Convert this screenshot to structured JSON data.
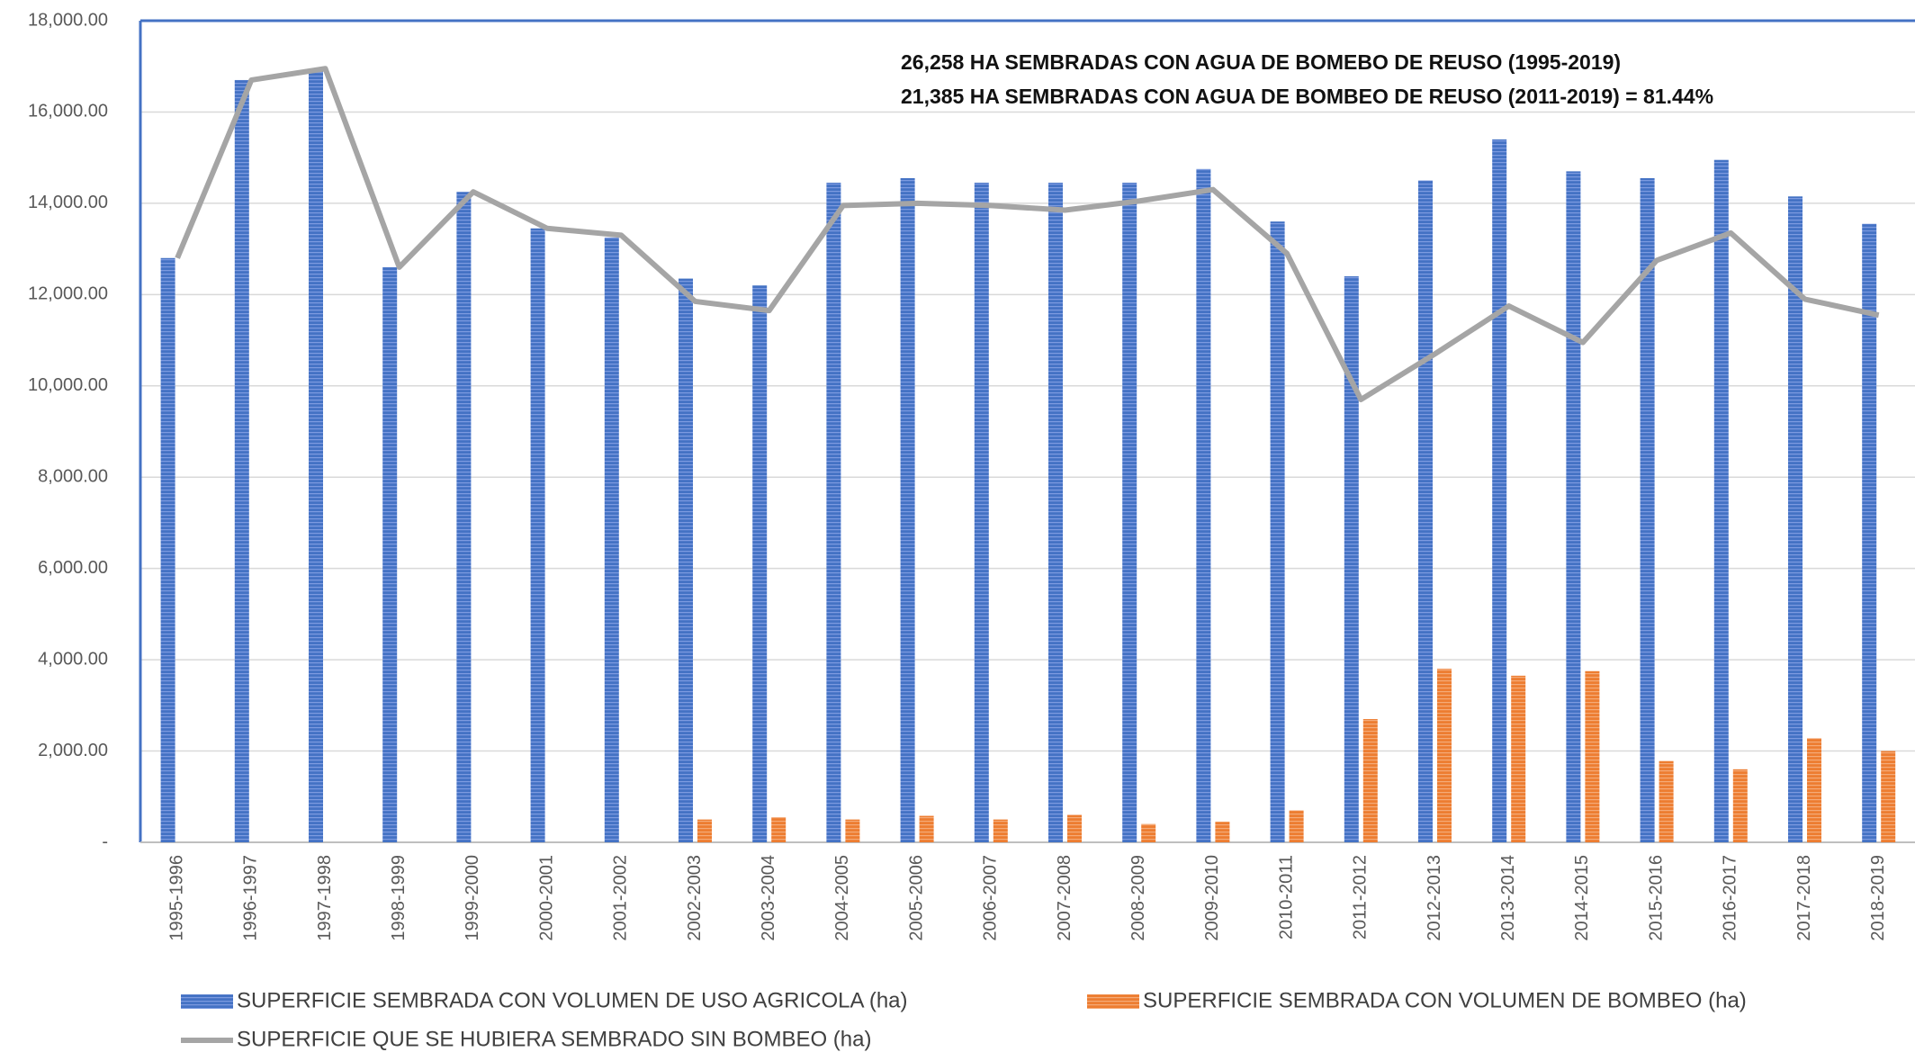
{
  "chart_data": {
    "type": "bar-line",
    "annotations": [
      "26,258 HA SEMBRADAS CON AGUA DE BOMEBO DE REUSO  (1995-2019)",
      "21,385 HA SEMBRADAS CON AGUA DE BOMBEO DE REUSO  (2011-2019) = 81.44%"
    ],
    "categories": [
      "1995-1996",
      "1996-1997",
      "1997-1998",
      "1998-1999",
      "1999-2000",
      "2000-2001",
      "2001-2002",
      "2002-2003",
      "2003-2004",
      "2004-2005",
      "2005-2006",
      "2006-2007",
      "2007-2008",
      "2008-2009",
      "2009-2010",
      "2010-2011",
      "2011-2012",
      "2012-2013",
      "2013-2014",
      "2014-2015",
      "2015-2016",
      "2016-2017",
      "2017-2018",
      "2018-2019"
    ],
    "series": [
      {
        "name": "SUPERFICIE SEMBRADA CON VOLUMEN DE USO AGRICOLA (ha)",
        "color": "#4472c4",
        "kind": "bar",
        "values": [
          12800,
          16700,
          16900,
          12600,
          14250,
          13450,
          13250,
          12350,
          12200,
          14450,
          14550,
          14450,
          14450,
          14450,
          14750,
          13600,
          12400,
          14500,
          15400,
          14700,
          14550,
          14950,
          14150,
          13550
        ]
      },
      {
        "name": "SUPERFICIE SEMBRADA CON VOLUMEN DE BOMBEO (ha)",
        "color": "#ed7d31",
        "kind": "bar",
        "values": [
          null,
          null,
          null,
          null,
          null,
          null,
          null,
          500,
          550,
          500,
          580,
          500,
          600,
          400,
          450,
          700,
          2700,
          3800,
          3650,
          3750,
          1780,
          1600,
          2280,
          2000
        ]
      },
      {
        "name": "SUPERFICIE  QUE SE HUBIERA SEMBRADO SIN  BOMBEO (ha)",
        "color": "#a5a5a5",
        "kind": "line",
        "values": [
          12800,
          16700,
          16950,
          12600,
          14250,
          13450,
          13300,
          11850,
          11650,
          13950,
          14000,
          13950,
          13850,
          14050,
          14300,
          12900,
          9700,
          10700,
          11750,
          10950,
          12750,
          13350,
          11900,
          11550
        ]
      }
    ],
    "ylim": [
      0,
      18000
    ],
    "yticks": [
      {
        "value": 0,
        "label": "-"
      },
      {
        "value": 2000,
        "label": "2,000.00"
      },
      {
        "value": 4000,
        "label": "4,000.00"
      },
      {
        "value": 6000,
        "label": "6,000.00"
      },
      {
        "value": 8000,
        "label": "8,000.00"
      },
      {
        "value": 10000,
        "label": "10,000.00"
      },
      {
        "value": 12000,
        "label": "12,000.00"
      },
      {
        "value": 14000,
        "label": "14,000.00"
      },
      {
        "value": 16000,
        "label": "16,000.00"
      },
      {
        "value": 18000,
        "label": "18,000.00"
      }
    ],
    "grid": true
  }
}
